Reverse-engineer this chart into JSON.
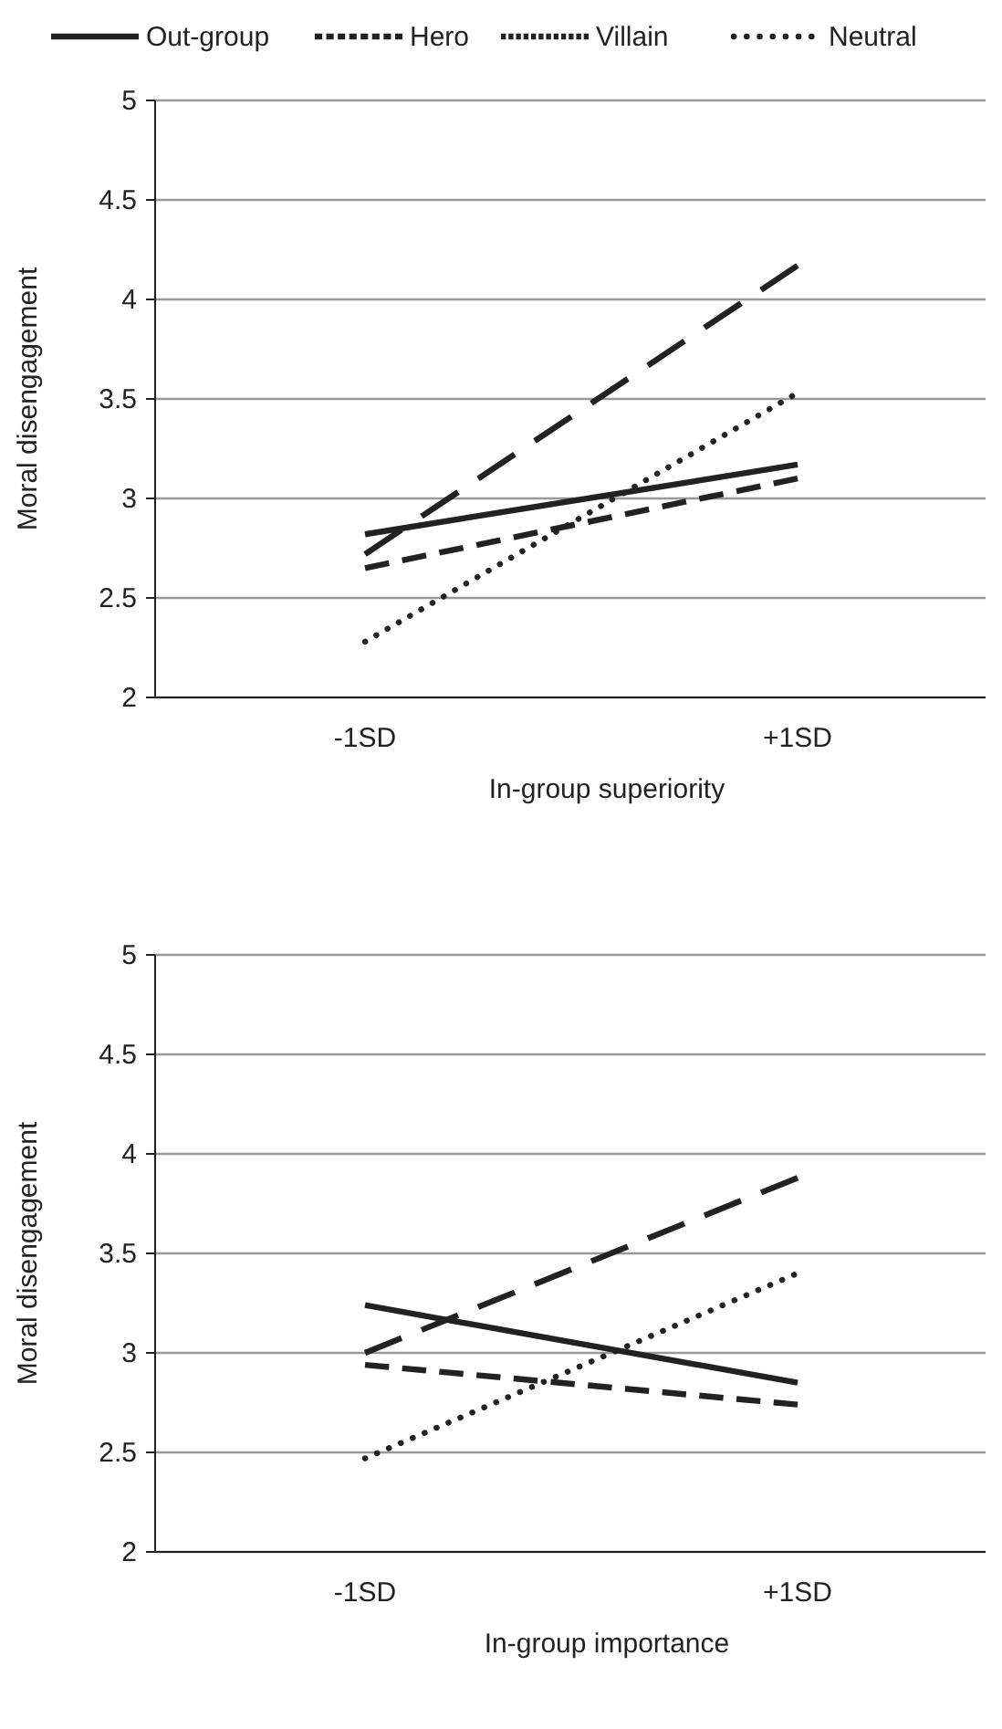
{
  "chart_data": [
    {
      "type": "line",
      "categories": [
        "-1SD",
        "+1SD"
      ],
      "xlabel": "In-group superiority",
      "ylabel": "Moral disengagement",
      "ylim": [
        2,
        5
      ],
      "yticks": [
        2,
        2.5,
        3,
        3.5,
        4,
        4.5,
        5
      ],
      "grid": "y",
      "legend": "top",
      "marker": "none",
      "series": [
        {
          "name": "Out-group",
          "color": "#222222",
          "line_style": "solid",
          "values": [
            2.82,
            3.17
          ]
        },
        {
          "name": "Hero",
          "color": "#222222",
          "line_style": "dashed",
          "values": [
            2.72,
            4.17
          ]
        },
        {
          "name": "Villain",
          "color": "#222222",
          "line_style": "dashed",
          "values": [
            2.65,
            3.1
          ]
        },
        {
          "name": "Neutral",
          "color": "#222222",
          "line_style": "dotted",
          "values": [
            2.28,
            3.53
          ]
        }
      ]
    },
    {
      "type": "line",
      "categories": [
        "-1SD",
        "+1SD"
      ],
      "xlabel": "In-group importance",
      "ylabel": "Moral disengagement",
      "ylim": [
        2,
        5
      ],
      "yticks": [
        2,
        2.5,
        3,
        3.5,
        4,
        4.5,
        5
      ],
      "grid": "y",
      "marker": "none",
      "series": [
        {
          "color": "#222222",
          "line_style": "solid",
          "values": [
            3.24,
            2.85
          ]
        },
        {
          "color": "#222222",
          "line_style": "dashed",
          "values": [
            3.0,
            3.88
          ]
        },
        {
          "color": "#222222",
          "line_style": "dashed",
          "values": [
            2.94,
            2.74
          ]
        },
        {
          "color": "#222222",
          "line_style": "dotted",
          "values": [
            2.47,
            3.4
          ]
        }
      ]
    }
  ]
}
